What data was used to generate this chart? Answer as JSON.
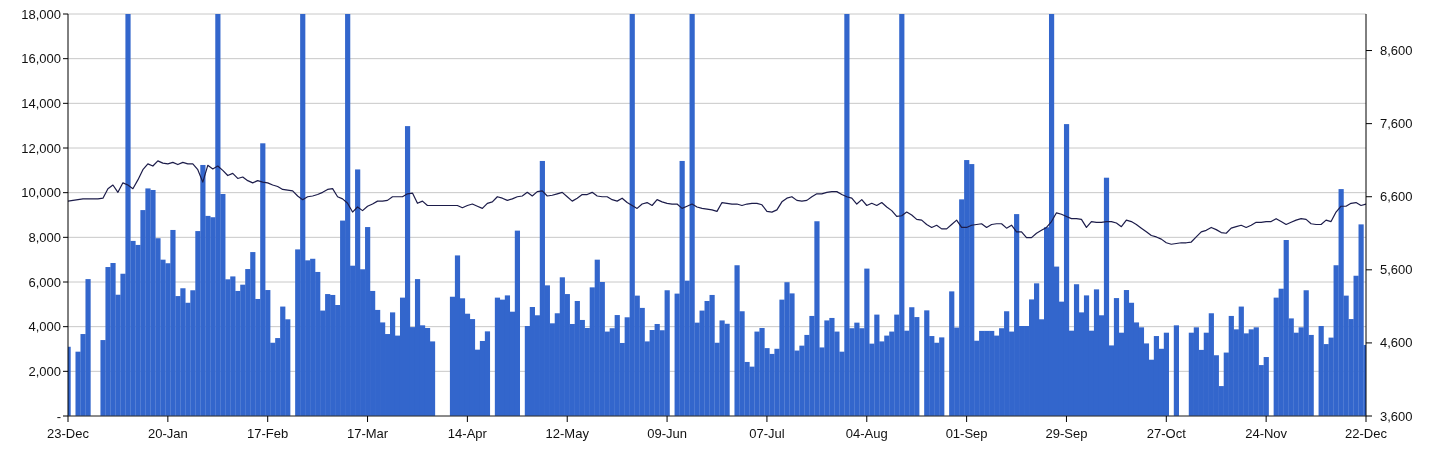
{
  "chart_data": {
    "type": "bar",
    "categories": [
      "23-Dec",
      null,
      null,
      null,
      null,
      null,
      null,
      null,
      null,
      null,
      null,
      null,
      null,
      null,
      null,
      null,
      null,
      null,
      null,
      null,
      "20-Jan",
      null,
      null,
      null,
      null,
      null,
      null,
      null,
      null,
      null,
      null,
      null,
      null,
      null,
      null,
      null,
      null,
      null,
      null,
      null,
      "17-Feb",
      null,
      null,
      null,
      null,
      null,
      null,
      null,
      null,
      null,
      null,
      null,
      null,
      null,
      null,
      null,
      null,
      null,
      null,
      null,
      "17-Mar",
      null,
      null,
      null,
      null,
      null,
      null,
      null,
      null,
      null,
      null,
      null,
      null,
      null,
      null,
      null,
      null,
      null,
      null,
      null,
      "14-Apr",
      null,
      null,
      null,
      null,
      null,
      null,
      null,
      null,
      null,
      null,
      null,
      null,
      null,
      null,
      null,
      null,
      null,
      null,
      null,
      "12-May",
      null,
      null,
      null,
      null,
      null,
      null,
      null,
      null,
      null,
      null,
      null,
      null,
      null,
      null,
      null,
      null,
      null,
      null,
      null,
      "09-Jun",
      null,
      null,
      null,
      null,
      null,
      null,
      null,
      null,
      null,
      null,
      null,
      null,
      null,
      null,
      null,
      null,
      null,
      null,
      null,
      "07-Jul",
      null,
      null,
      null,
      null,
      null,
      null,
      null,
      null,
      null,
      null,
      null,
      null,
      null,
      null,
      null,
      null,
      null,
      null,
      null,
      "04-Aug",
      null,
      null,
      null,
      null,
      null,
      null,
      null,
      null,
      null,
      null,
      null,
      null,
      null,
      null,
      null,
      null,
      null,
      null,
      null,
      "01-Sep",
      null,
      null,
      null,
      null,
      null,
      null,
      null,
      null,
      null,
      null,
      null,
      null,
      null,
      null,
      null,
      null,
      null,
      null,
      null,
      "29-Sep",
      null,
      null,
      null,
      null,
      null,
      null,
      null,
      null,
      null,
      null,
      null,
      null,
      null,
      null,
      null,
      null,
      null,
      null,
      null,
      "27-Oct",
      null,
      null,
      null,
      null,
      null,
      null,
      null,
      null,
      null,
      null,
      null,
      null,
      null,
      null,
      null,
      null,
      null,
      null,
      null,
      "24-Nov",
      null,
      null,
      null,
      null,
      null,
      null,
      null,
      null,
      null,
      null,
      null,
      null,
      null,
      null,
      null,
      null,
      null,
      null,
      null,
      "22-Dec"
    ],
    "series": [
      {
        "color": "#3366cc",
        "values": [
          3100,
          null,
          2880,
          3670,
          6130,
          null,
          null,
          3400,
          6670,
          6850,
          5430,
          6370,
          18000,
          7840,
          7660,
          9220,
          10190,
          10120,
          7960,
          7000,
          6840,
          8330,
          5370,
          5720,
          5070,
          5630,
          8280,
          11240,
          8960,
          8900,
          18000,
          9940,
          6120,
          6250,
          5600,
          5880,
          6580,
          7340,
          5240,
          12210,
          5640,
          3280,
          3490,
          4900,
          4330,
          null,
          7460,
          18000,
          6970,
          7040,
          6450,
          4720,
          5460,
          5420,
          4970,
          8750,
          18000,
          6730,
          11040,
          6570,
          8460,
          5600,
          4750,
          4190,
          3670,
          4640,
          3600,
          5300,
          12980,
          3980,
          6130,
          4060,
          3940,
          3340,
          null,
          null,
          null,
          5340,
          7190,
          5270,
          4580,
          4340,
          2970,
          3360,
          3790,
          null,
          5300,
          5210,
          5400,
          4670,
          8300,
          null,
          4030,
          4880,
          4510,
          11420,
          5850,
          4150,
          4600,
          6210,
          5460,
          4120,
          5150,
          4300,
          3940,
          5760,
          7000,
          6000,
          3780,
          3930,
          4520,
          3270,
          4420,
          18000,
          5390,
          4840,
          3340,
          3850,
          4120,
          3840,
          5630,
          null,
          5480,
          11420,
          6060,
          18000,
          4180,
          4720,
          5150,
          5420,
          3280,
          4280,
          4130,
          null,
          6750,
          4690,
          2420,
          2210,
          3780,
          3940,
          3040,
          2780,
          3010,
          5210,
          5990,
          5490,
          2930,
          3150,
          3630,
          4480,
          8720,
          3070,
          4280,
          4390,
          3780,
          2880,
          18000,
          3930,
          4180,
          3930,
          6600,
          3240,
          4540,
          3340,
          3600,
          3780,
          4540,
          18000,
          3820,
          4870,
          4430,
          null,
          4730,
          3580,
          3280,
          3520,
          null,
          5580,
          3960,
          9700,
          11460,
          11280,
          3370,
          3810,
          3810,
          3810,
          3600,
          3930,
          4690,
          3780,
          9040,
          4030,
          4030,
          5220,
          5940,
          4330,
          8450,
          18000,
          6690,
          5120,
          13070,
          3820,
          5900,
          4640,
          5400,
          3820,
          5670,
          4510,
          10670,
          3160,
          5280,
          3730,
          5640,
          5070,
          4190,
          3970,
          3250,
          2520,
          3580,
          3010,
          3730,
          null,
          4060,
          null,
          null,
          3730,
          3970,
          2960,
          3730,
          4600,
          2720,
          1340,
          2840,
          4480,
          3880,
          4900,
          3700,
          3880,
          3970,
          2280,
          2640,
          null,
          5300,
          5700,
          7880,
          4370,
          3730,
          3970,
          5630,
          3630,
          null,
          4030,
          3220,
          3510,
          6750,
          10160,
          5390,
          4340,
          6280,
          8580,
          3180
        ]
      },
      {
        "type": "line",
        "axis": "y2",
        "color": "#1c1c4a",
        "values": [
          6540,
          6550,
          6560,
          6570,
          6570,
          6570,
          6570,
          6580,
          6710,
          6760,
          6660,
          6790,
          6760,
          6710,
          6830,
          6970,
          7050,
          7020,
          7090,
          7060,
          7050,
          7070,
          7040,
          7070,
          7050,
          7050,
          6970,
          6800,
          7030,
          6980,
          7020,
          6960,
          6890,
          6920,
          6850,
          6870,
          6820,
          6790,
          6820,
          6800,
          6790,
          6760,
          6740,
          6700,
          6690,
          6680,
          6610,
          6560,
          6600,
          6610,
          6630,
          6660,
          6700,
          6710,
          6600,
          6570,
          6510,
          6390,
          6460,
          6410,
          6470,
          6500,
          6540,
          6540,
          6550,
          6600,
          6600,
          6600,
          6640,
          6650,
          6510,
          6540,
          6480,
          6480,
          6480,
          6480,
          6480,
          6480,
          6480,
          6450,
          6480,
          6500,
          6470,
          6440,
          6510,
          6530,
          6600,
          6580,
          6550,
          6570,
          6600,
          6610,
          6660,
          6610,
          6670,
          6680,
          6610,
          6620,
          6640,
          6660,
          6600,
          6540,
          6580,
          6630,
          6630,
          6660,
          6610,
          6600,
          6600,
          6560,
          6540,
          6580,
          6520,
          6480,
          6440,
          6500,
          6520,
          6480,
          6560,
          6530,
          6510,
          6500,
          6500,
          6440,
          6470,
          6500,
          6460,
          6440,
          6430,
          6420,
          6400,
          6520,
          6510,
          6500,
          6500,
          6480,
          6500,
          6510,
          6510,
          6490,
          6400,
          6390,
          6420,
          6530,
          6580,
          6600,
          6550,
          6540,
          6550,
          6600,
          6640,
          6640,
          6660,
          6670,
          6670,
          6630,
          6600,
          6580,
          6500,
          6560,
          6480,
          6510,
          6480,
          6520,
          6460,
          6410,
          6330,
          6340,
          6390,
          6350,
          6290,
          6280,
          6220,
          6180,
          6210,
          6160,
          6160,
          6220,
          6280,
          6180,
          6180,
          6210,
          6220,
          6230,
          6180,
          6220,
          6230,
          6230,
          6170,
          6210,
          6120,
          6120,
          6040,
          6040,
          6100,
          6140,
          6180,
          6260,
          6380,
          6360,
          6330,
          6300,
          6300,
          6290,
          6180,
          6260,
          6250,
          6250,
          6260,
          6260,
          6240,
          6190,
          6280,
          6260,
          6220,
          6170,
          6120,
          6070,
          6050,
          6020,
          5970,
          5950,
          5960,
          5970,
          5970,
          5980,
          6050,
          6120,
          6140,
          6180,
          6150,
          6110,
          6100,
          6170,
          6190,
          6210,
          6180,
          6210,
          6250,
          6250,
          6260,
          6260,
          6300,
          6260,
          6220,
          6250,
          6280,
          6300,
          6290,
          6230,
          6220,
          6220,
          6280,
          6260,
          6390,
          6470,
          6470,
          6510,
          6520,
          6480,
          6500
        ]
      }
    ],
    "ylim": [
      0,
      18000
    ],
    "yticks": [
      {
        "value": 0,
        "label": "-"
      },
      {
        "value": 2000,
        "label": "2,000"
      },
      {
        "value": 4000,
        "label": "4,000"
      },
      {
        "value": 6000,
        "label": "6,000"
      },
      {
        "value": 8000,
        "label": "8,000"
      },
      {
        "value": 10000,
        "label": "10,000"
      },
      {
        "value": 12000,
        "label": "12,000"
      },
      {
        "value": 14000,
        "label": "14,000"
      },
      {
        "value": 16000,
        "label": "16,000"
      },
      {
        "value": 18000,
        "label": "18,000"
      }
    ],
    "y2lim": [
      3600,
      9100
    ],
    "y2ticks": [
      {
        "value": 3600,
        "label": "3,600"
      },
      {
        "value": 4600,
        "label": "4,600"
      },
      {
        "value": 5600,
        "label": "5,600"
      },
      {
        "value": 6600,
        "label": "6,600"
      },
      {
        "value": 7600,
        "label": "7,600"
      },
      {
        "value": 8600,
        "label": "8,600"
      }
    ],
    "grid": "y"
  }
}
